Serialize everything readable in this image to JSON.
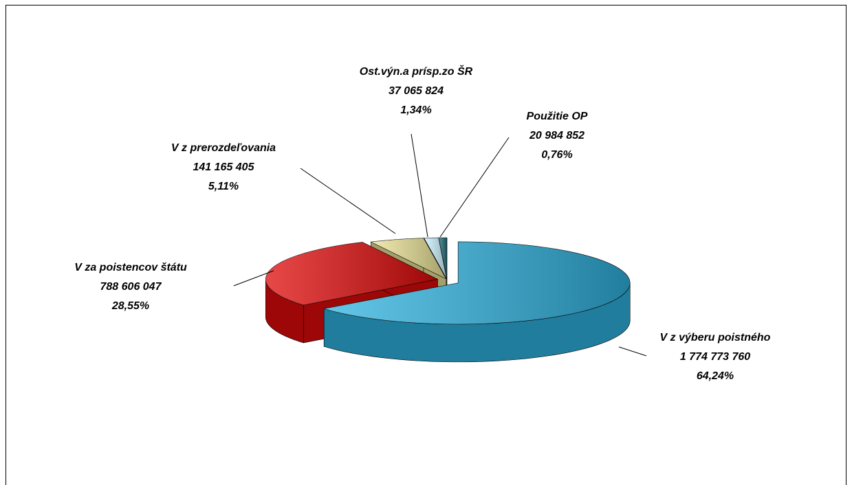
{
  "chart_data": {
    "type": "pie",
    "categories": [
      "V z výberu poistného",
      "V za poistencov štátu",
      "V z prerozdeľovania",
      "Ost.výn.a prísp.zo ŠR",
      "Použitie OP"
    ],
    "values": [
      64.24,
      28.55,
      5.11,
      1.34,
      0.76
    ],
    "value_labels": [
      "64,24%",
      "28,55%",
      "5,11%",
      "1,34%",
      "0,76%"
    ],
    "amounts": [
      1774773760,
      788606047,
      141165405,
      37065824,
      20984852
    ],
    "amount_labels": [
      "1 774 773 760",
      "788 606 047",
      "141 165 405",
      "37 065 824",
      "20 984 852"
    ],
    "colors": [
      "#2fb3e0",
      "#e00a0a",
      "#ece497",
      "#cdf4ff",
      "#1d6f7c"
    ]
  }
}
